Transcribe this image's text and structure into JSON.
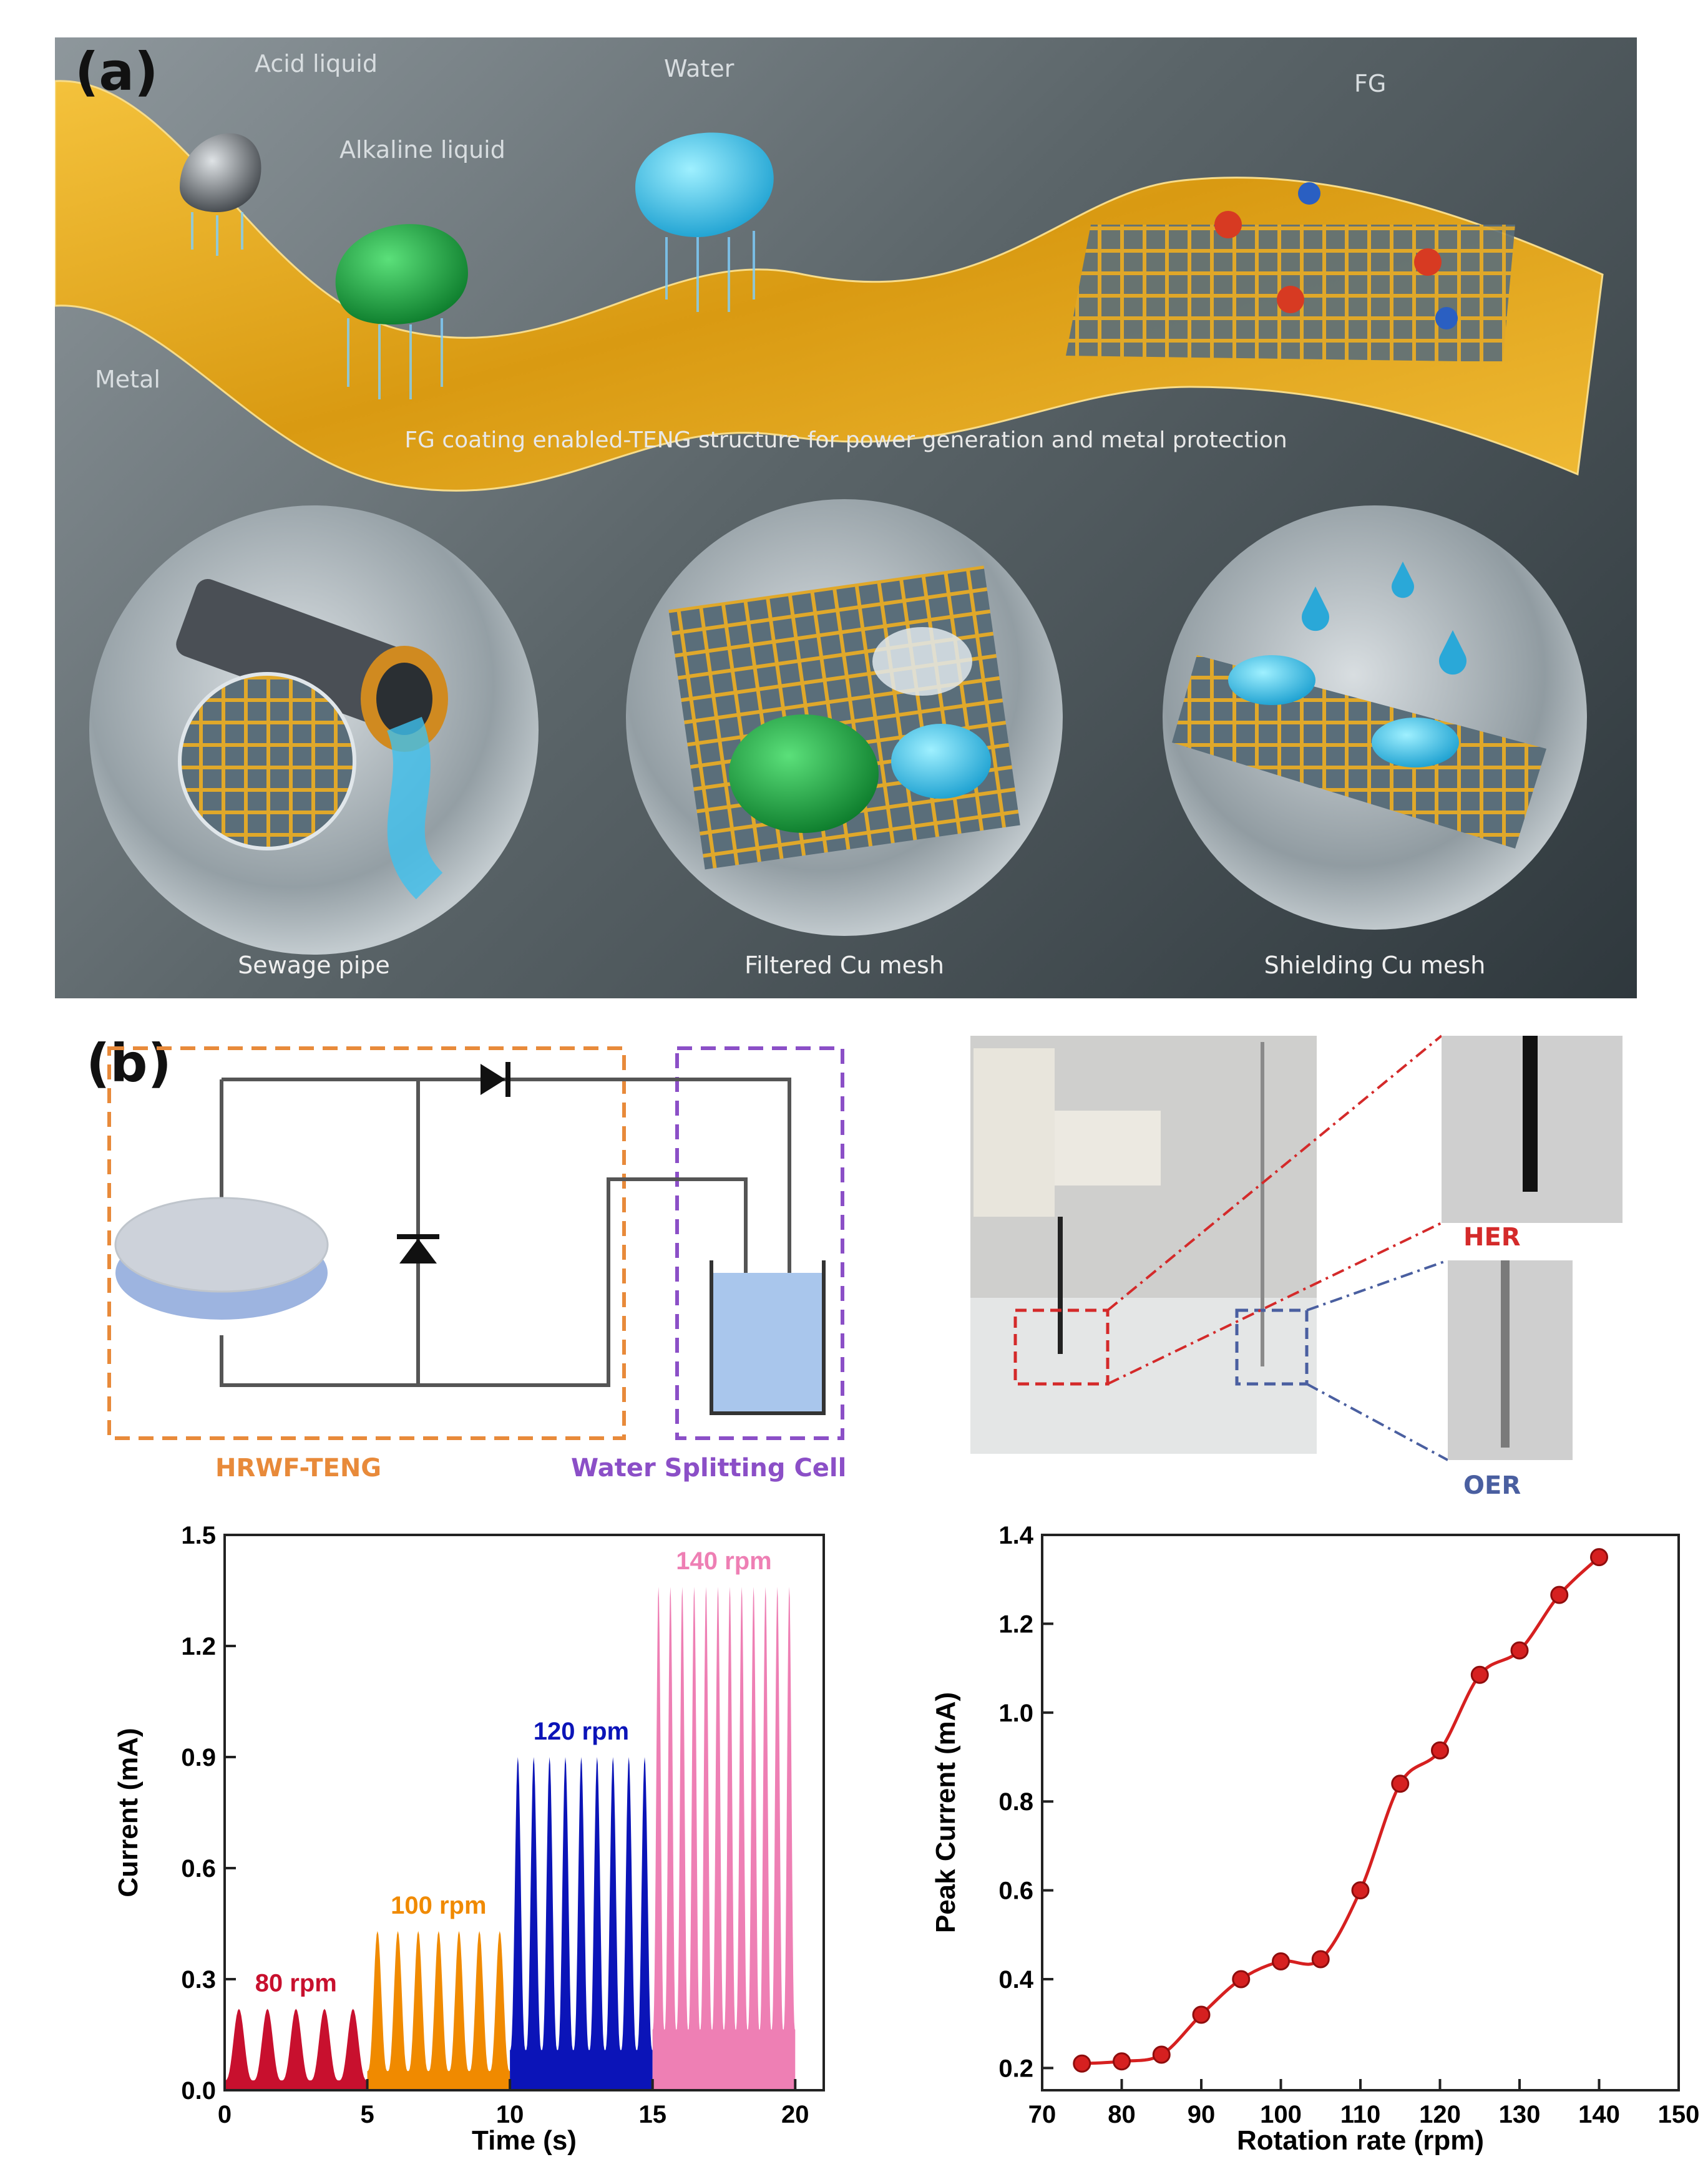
{
  "panel_a": {
    "label": "(a)",
    "callouts": {
      "acid": "Acid liquid",
      "alkaline": "Alkaline liquid",
      "water": "Water",
      "fg": "FG",
      "metal": "Metal"
    },
    "caption": "FG coating enabled-TENG structure for power generation and metal protection",
    "bubbles": [
      "Sewage pipe",
      "Filtered Cu mesh",
      "Shielding Cu mesh"
    ]
  },
  "panel_b": {
    "label": "(b)",
    "circuit": {
      "teng_label": "HRWF-TENG",
      "cell_label": "Water Splitting Cell"
    },
    "photo": {
      "her_label": "HER",
      "oer_label": "OER"
    }
  },
  "colors": {
    "rpm80": "#c8102e",
    "rpm100": "#f08a00",
    "rpm120": "#0b14b8",
    "rpm140": "#ee7fb4",
    "peak": "#d62020",
    "teng_box": "#e88a3a",
    "cell_box": "#8b4fc7"
  },
  "chart_data": [
    {
      "type": "area",
      "xlabel": "Time (s)",
      "ylabel": "Current (mA)",
      "xlim": [
        0,
        21
      ],
      "ylim": [
        0,
        1.5
      ],
      "xticks": [
        "0",
        "5",
        "10",
        "15",
        "20"
      ],
      "yticks": [
        "0.0",
        "0.3",
        "0.6",
        "0.9",
        "1.2",
        "1.5"
      ],
      "series": [
        {
          "name": "80 rpm",
          "x_range": [
            0,
            5
          ],
          "peaks": 5,
          "peak_value": 0.22
        },
        {
          "name": "100 rpm",
          "x_range": [
            5,
            10
          ],
          "peaks": 7,
          "peak_value": 0.43
        },
        {
          "name": "120 rpm",
          "x_range": [
            10,
            15
          ],
          "peaks": 9,
          "peak_value": 0.9
        },
        {
          "name": "140 rpm",
          "x_range": [
            15,
            20
          ],
          "peaks": 12,
          "peak_value": 1.36
        }
      ]
    },
    {
      "type": "line",
      "xlabel": "Rotation rate (rpm)",
      "ylabel": "Peak Current (mA)",
      "xlim": [
        70,
        150
      ],
      "ylim": [
        0.15,
        1.4
      ],
      "xticks": [
        "70",
        "80",
        "90",
        "100",
        "110",
        "120",
        "130",
        "140",
        "150"
      ],
      "yticks": [
        "0.2",
        "0.4",
        "0.6",
        "0.8",
        "1.0",
        "1.2",
        "1.4"
      ],
      "x": [
        75,
        80,
        85,
        90,
        95,
        100,
        105,
        110,
        115,
        120,
        125,
        130,
        135,
        140
      ],
      "y": [
        0.21,
        0.215,
        0.23,
        0.32,
        0.4,
        0.44,
        0.445,
        0.6,
        0.84,
        0.915,
        1.085,
        1.14,
        1.265,
        1.35
      ]
    }
  ]
}
